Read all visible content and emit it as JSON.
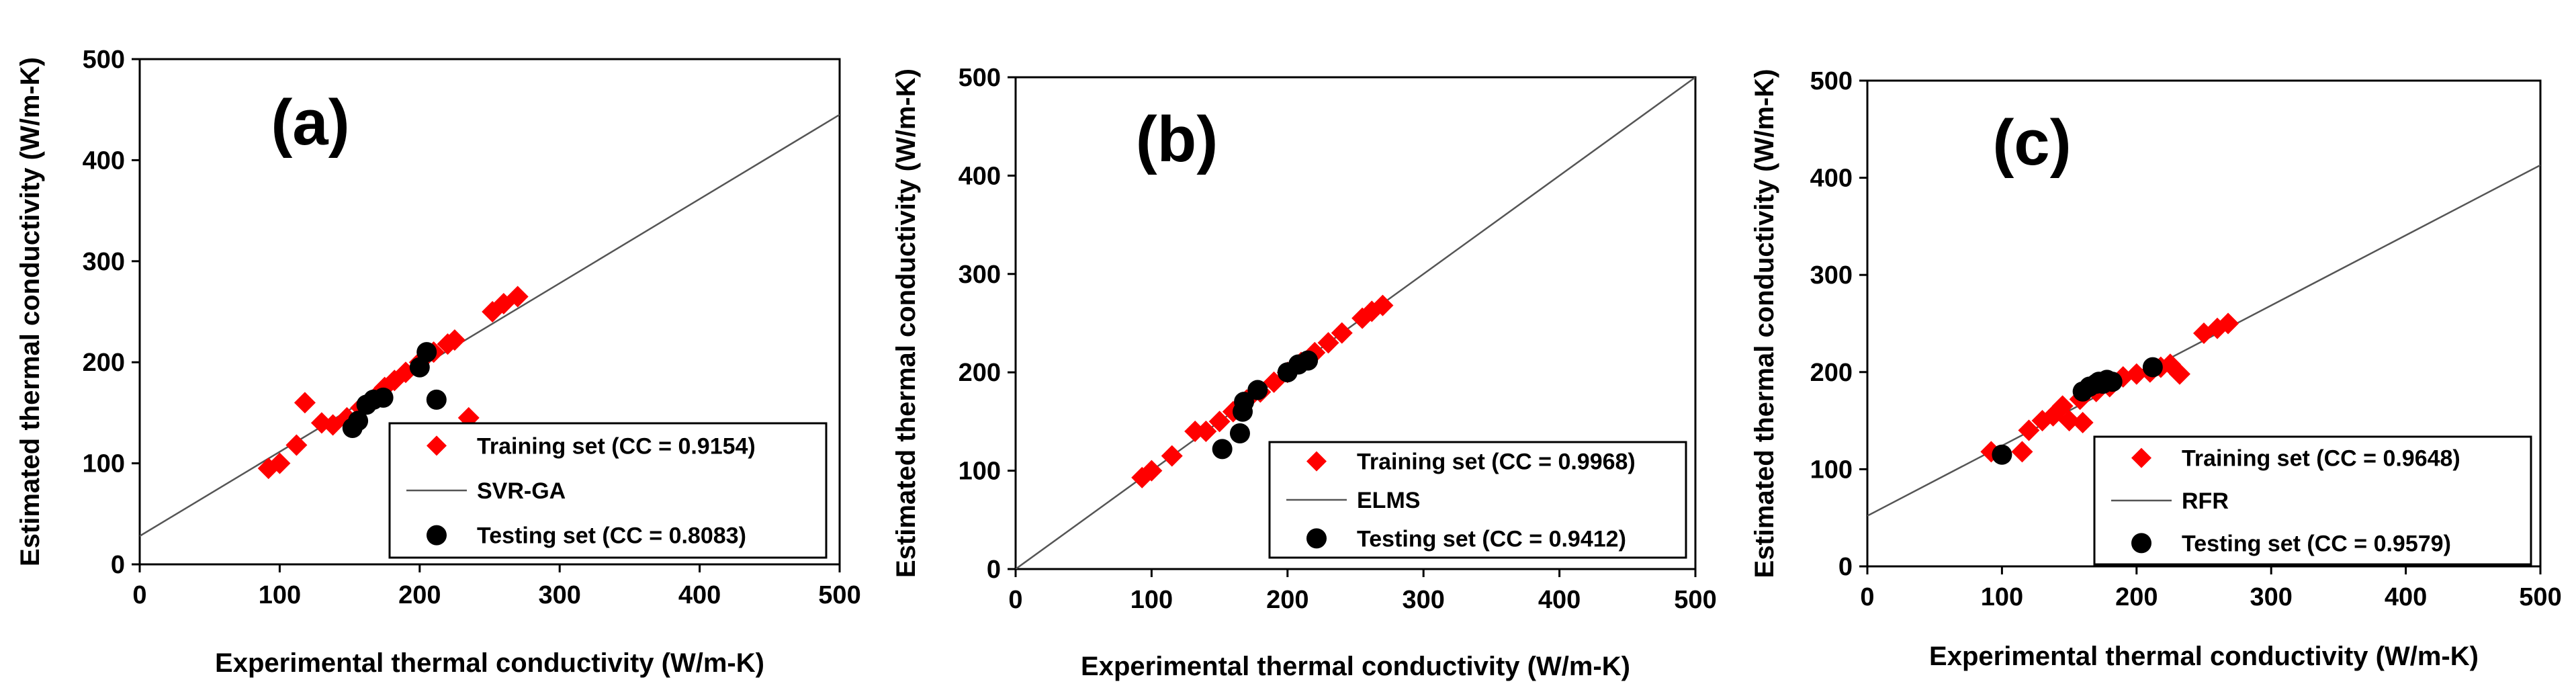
{
  "chart_data": [
    {
      "type": "scatter",
      "panel_label": "(a)",
      "xlabel": "Experimental thermal conductivity (W/m-K)",
      "ylabel": "Estimated thermal conductivity (W/m-K)",
      "xlim": [
        0,
        500
      ],
      "ylim": [
        0,
        500
      ],
      "xticks": [
        "0",
        "100",
        "200",
        "300",
        "400",
        "500"
      ],
      "yticks": [
        "0",
        "100",
        "200",
        "300",
        "400",
        "500"
      ],
      "grid": false,
      "legend_position": "bottom-right",
      "fit_line": {
        "name": "SVR-GA",
        "x": [
          0,
          500
        ],
        "y": [
          28,
          445
        ]
      },
      "series": [
        {
          "name": "Training set (CC = 0.9154)",
          "marker": "diamond",
          "color": "#ff0000",
          "points": [
            [
              92,
              95
            ],
            [
              100,
              100
            ],
            [
              112,
              118
            ],
            [
              118,
              160
            ],
            [
              130,
              140
            ],
            [
              138,
              138
            ],
            [
              148,
              145
            ],
            [
              158,
              155
            ],
            [
              168,
              165
            ],
            [
              175,
              175
            ],
            [
              182,
              182
            ],
            [
              190,
              190
            ],
            [
              200,
              200
            ],
            [
              210,
              210
            ],
            [
              220,
              218
            ],
            [
              225,
              222
            ],
            [
              235,
              145
            ],
            [
              252,
              250
            ],
            [
              260,
              258
            ],
            [
              270,
              265
            ]
          ]
        },
        {
          "name": "Testing set (CC = 0.8083)",
          "marker": "circle",
          "color": "#000000",
          "points": [
            [
              152,
              135
            ],
            [
              156,
              142
            ],
            [
              162,
              158
            ],
            [
              167,
              163
            ],
            [
              174,
              165
            ],
            [
              200,
              195
            ],
            [
              205,
              210
            ],
            [
              212,
              163
            ]
          ]
        }
      ]
    },
    {
      "type": "scatter",
      "panel_label": "(b)",
      "xlabel": "Experimental thermal conductivity (W/m-K)",
      "ylabel": "Estimated thermal conductivity (W/m-K)",
      "xlim": [
        0,
        500
      ],
      "ylim": [
        0,
        500
      ],
      "xticks": [
        "0",
        "100",
        "200",
        "300",
        "400",
        "500"
      ],
      "yticks": [
        "0",
        "100",
        "200",
        "300",
        "400",
        "500"
      ],
      "grid": false,
      "legend_position": "bottom-right",
      "fit_line": {
        "name": "ELMS",
        "x": [
          0,
          500
        ],
        "y": [
          0,
          500
        ]
      },
      "series": [
        {
          "name": "Training set (CC = 0.9968)",
          "marker": "diamond",
          "color": "#ff0000",
          "points": [
            [
              93,
              93
            ],
            [
              100,
              100
            ],
            [
              115,
              115
            ],
            [
              132,
              140
            ],
            [
              140,
              140
            ],
            [
              150,
              150
            ],
            [
              160,
              160
            ],
            [
              170,
              172
            ],
            [
              180,
              180
            ],
            [
              190,
              190
            ],
            [
              200,
              200
            ],
            [
              210,
              210
            ],
            [
              220,
              220
            ],
            [
              230,
              230
            ],
            [
              240,
              240
            ],
            [
              255,
              255
            ],
            [
              262,
              262
            ],
            [
              270,
              268
            ]
          ]
        },
        {
          "name": "Testing set (CC = 0.9412)",
          "marker": "circle",
          "color": "#000000",
          "points": [
            [
              152,
              122
            ],
            [
              165,
              138
            ],
            [
              167,
              160
            ],
            [
              168,
              170
            ],
            [
              178,
              182
            ],
            [
              200,
              200
            ],
            [
              208,
              208
            ],
            [
              215,
              212
            ]
          ]
        }
      ]
    },
    {
      "type": "scatter",
      "panel_label": "(c)",
      "xlabel": "Experimental thermal conductivity (W/m-K)",
      "ylabel": "Estimated thermal conductivity (W/m-K)",
      "xlim": [
        0,
        500
      ],
      "ylim": [
        0,
        500
      ],
      "xticks": [
        "0",
        "100",
        "200",
        "300",
        "400",
        "500"
      ],
      "yticks": [
        "0",
        "100",
        "200",
        "300",
        "400",
        "500"
      ],
      "grid": false,
      "legend_position": "bottom-right",
      "fit_line": {
        "name": "RFR",
        "x": [
          0,
          500
        ],
        "y": [
          52,
          413
        ]
      },
      "series": [
        {
          "name": "Training set (CC = 0.9648)",
          "marker": "diamond",
          "color": "#ff0000",
          "points": [
            [
              92,
              118
            ],
            [
              115,
              118
            ],
            [
              120,
              140
            ],
            [
              130,
              150
            ],
            [
              138,
              155
            ],
            [
              145,
              165
            ],
            [
              150,
              150
            ],
            [
              158,
              172
            ],
            [
              160,
              148
            ],
            [
              170,
              180
            ],
            [
              180,
              185
            ],
            [
              190,
              195
            ],
            [
              200,
              198
            ],
            [
              210,
              200
            ],
            [
              218,
              205
            ],
            [
              225,
              208
            ],
            [
              232,
              198
            ],
            [
              250,
              240
            ],
            [
              260,
              245
            ],
            [
              268,
              250
            ]
          ]
        },
        {
          "name": "Testing set (CC = 0.9579)",
          "marker": "circle",
          "color": "#000000",
          "points": [
            [
              100,
              115
            ],
            [
              160,
              180
            ],
            [
              165,
              185
            ],
            [
              170,
              188
            ],
            [
              172,
              190
            ],
            [
              175,
              188
            ],
            [
              178,
              192
            ],
            [
              182,
              190
            ],
            [
              212,
              205
            ]
          ]
        }
      ]
    }
  ]
}
